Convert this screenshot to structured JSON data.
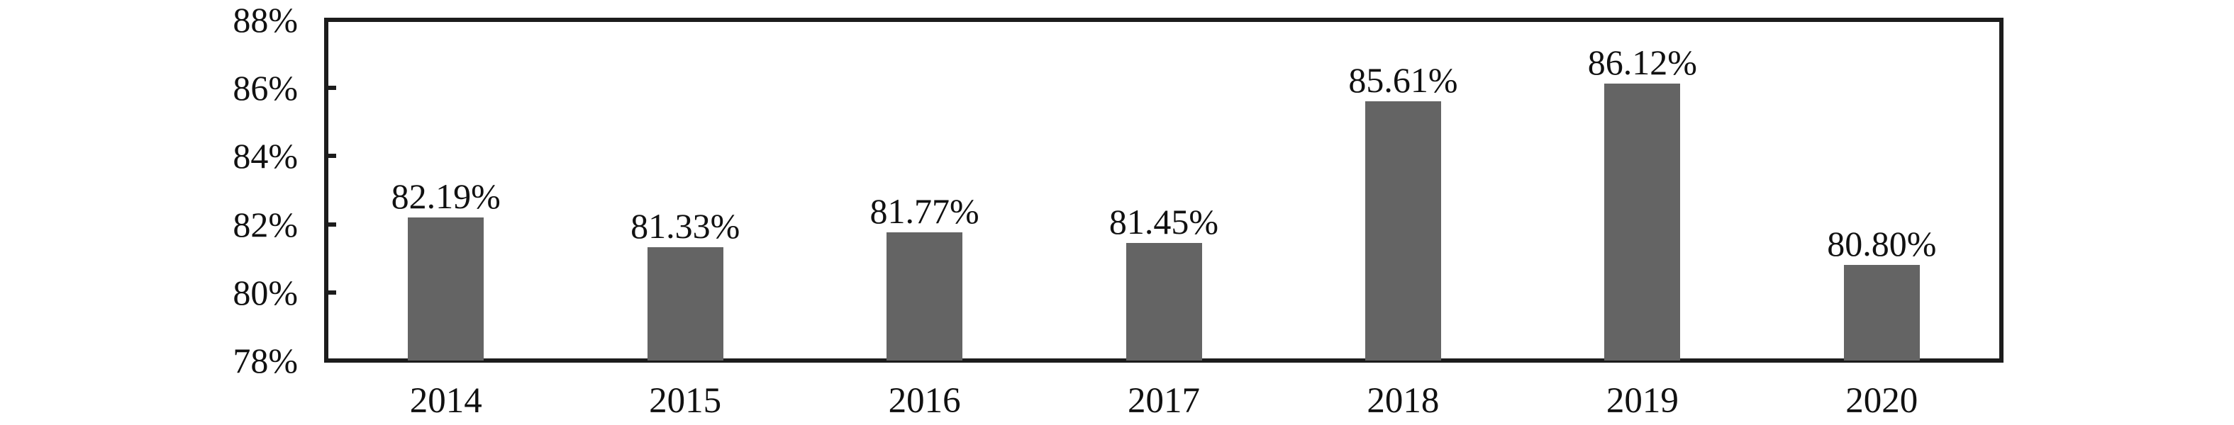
{
  "chart_data": {
    "type": "bar",
    "title": "",
    "xlabel": "",
    "ylabel": "",
    "categories": [
      "2014",
      "2015",
      "2016",
      "2017",
      "2018",
      "2019",
      "2020"
    ],
    "values": [
      82.19,
      81.33,
      81.77,
      81.45,
      85.61,
      86.12,
      80.8
    ],
    "labels": [
      "82.19%",
      "81.33%",
      "81.77%",
      "81.45%",
      "85.61%",
      "86.12%",
      "80.80%"
    ],
    "ylim": [
      78,
      88
    ],
    "ytick_values": [
      78,
      80,
      82,
      84,
      86,
      88
    ],
    "ytick_labels": [
      "78%",
      "80%",
      "82%",
      "84%",
      "86%",
      "88%"
    ],
    "grid": false,
    "legend": null,
    "colors": {
      "bar_fill": "#646464",
      "axis_line": "#1c1c1c",
      "text": "#111111",
      "background": "#ffffff"
    }
  }
}
